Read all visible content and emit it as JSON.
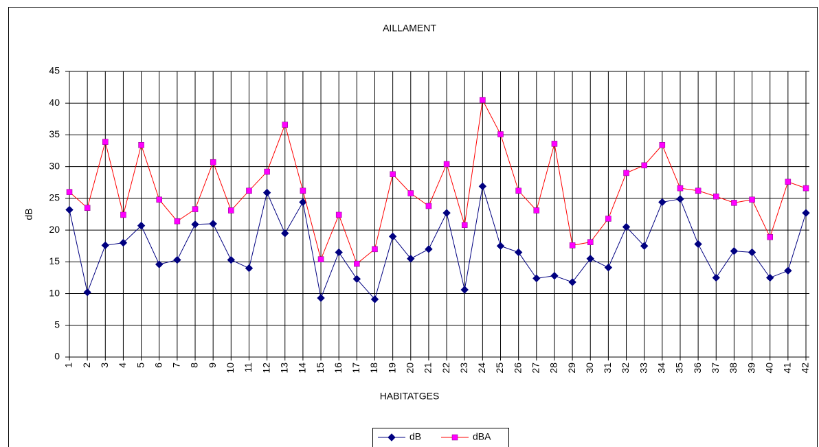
{
  "chart_data": {
    "type": "line",
    "title": "AILLAMENT",
    "x_label": "HABITATGES",
    "y_label": "dB",
    "categories": [
      "1",
      "2",
      "3",
      "4",
      "5",
      "6",
      "7",
      "8",
      "9",
      "10",
      "11",
      "12",
      "13",
      "14",
      "15",
      "16",
      "17",
      "18",
      "19",
      "20",
      "21",
      "22",
      "23",
      "24",
      "25",
      "26",
      "27",
      "28",
      "29",
      "30",
      "31",
      "32",
      "33",
      "34",
      "35",
      "36",
      "37",
      "38",
      "39",
      "40",
      "41",
      "42"
    ],
    "series": [
      {
        "name": "dB",
        "color": "#000080",
        "marker_color": "#000080",
        "marker": "diamond",
        "values": [
          23.2,
          10.2,
          17.6,
          18.0,
          20.7,
          14.6,
          15.3,
          20.9,
          21.0,
          15.3,
          14.0,
          25.9,
          19.5,
          24.4,
          9.3,
          16.5,
          12.3,
          9.1,
          19.0,
          15.5,
          17.0,
          22.7,
          10.6,
          26.9,
          17.5,
          16.5,
          12.4,
          12.8,
          11.8,
          15.5,
          14.1,
          20.5,
          17.5,
          24.4,
          24.9,
          17.8,
          12.5,
          16.7,
          16.5,
          12.5,
          13.6,
          22.7
        ]
      },
      {
        "name": "dBA",
        "color": "#ff0000",
        "marker_color": "#ff00ff",
        "marker": "square",
        "values": [
          26.0,
          23.5,
          33.9,
          22.4,
          33.4,
          24.8,
          21.4,
          23.3,
          30.7,
          23.1,
          26.2,
          29.2,
          36.6,
          26.2,
          15.4,
          22.4,
          14.7,
          17.0,
          28.8,
          25.8,
          23.8,
          30.4,
          20.8,
          40.5,
          35.1,
          26.2,
          23.1,
          33.6,
          17.6,
          18.1,
          21.8,
          29.0,
          30.2,
          33.4,
          26.6,
          26.2,
          25.3,
          24.3,
          24.8,
          18.9,
          27.6,
          26.6
        ]
      }
    ],
    "ylim": [
      0,
      45
    ],
    "yticks": [
      0,
      5,
      10,
      15,
      20,
      25,
      30,
      35,
      40,
      45
    ],
    "grid": true,
    "legend": "bottom"
  }
}
